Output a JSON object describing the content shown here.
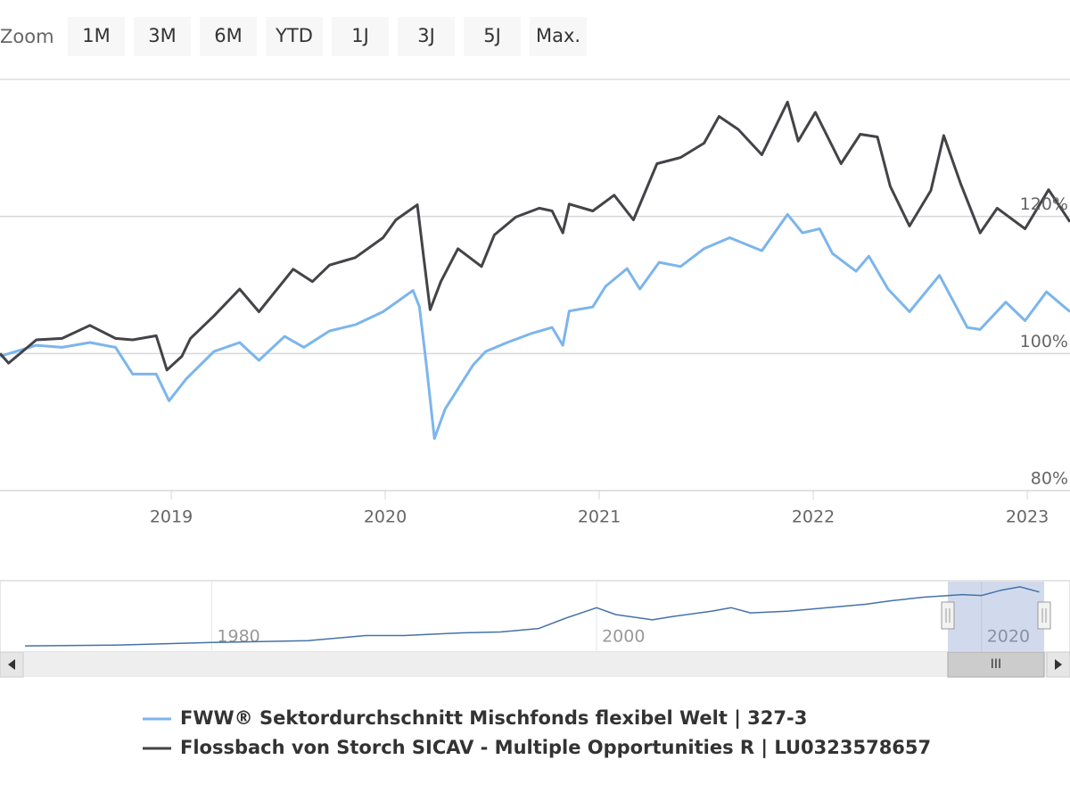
{
  "chart_data": {
    "type": "line",
    "zoom_label": "Zoom",
    "zoom_buttons": [
      "1M",
      "3M",
      "6M",
      "YTD",
      "1J",
      "3J",
      "5J",
      "Max."
    ],
    "xlim": [
      2018.2,
      2023.2
    ],
    "xticks": [
      2019,
      2020,
      2021,
      2022,
      2023
    ],
    "ylim": [
      80,
      140
    ],
    "yticks": [
      {
        "value": 80,
        "label": "80%"
      },
      {
        "value": 100,
        "label": "100%"
      },
      {
        "value": 120,
        "label": "120%"
      }
    ],
    "grid": true,
    "series": [
      {
        "name": "FWW® Sektordurchschnitt Mischfonds flexibel Welt | 327-3",
        "color": "#7cb5ec",
        "x": [
          2018.2,
          2018.37,
          2018.49,
          2018.62,
          2018.74,
          2018.82,
          2018.93,
          2018.99,
          2019.07,
          2019.2,
          2019.32,
          2019.41,
          2019.53,
          2019.62,
          2019.74,
          2019.86,
          2019.99,
          2020.13,
          2020.16,
          2020.19,
          2020.23,
          2020.28,
          2020.41,
          2020.47,
          2020.57,
          2020.68,
          2020.78,
          2020.83,
          2020.86,
          2020.97,
          2021.03,
          2021.13,
          2021.19,
          2021.28,
          2021.38,
          2021.49,
          2021.61,
          2021.76,
          2021.88,
          2021.95,
          2022.03,
          2022.09,
          2022.2,
          2022.26,
          2022.35,
          2022.45,
          2022.59,
          2022.72,
          2022.78,
          2022.9,
          2022.99,
          2023.09,
          2023.2
        ],
        "values": [
          99.6,
          101.2,
          100.9,
          101.6,
          100.9,
          97.0,
          97.0,
          93.1,
          96.3,
          100.3,
          101.6,
          99.0,
          102.5,
          100.9,
          103.3,
          104.2,
          106.1,
          109.2,
          106.8,
          99.0,
          87.6,
          91.9,
          98.3,
          100.3,
          101.6,
          102.9,
          103.8,
          101.2,
          106.2,
          106.8,
          109.8,
          112.4,
          109.4,
          113.3,
          112.7,
          115.3,
          116.9,
          115.0,
          120.3,
          117.6,
          118.2,
          114.6,
          112.0,
          114.2,
          109.4,
          106.1,
          111.4,
          103.8,
          103.5,
          107.5,
          104.8,
          109.0,
          106.1
        ]
      },
      {
        "name": "Flossbach von Storch SICAV - Multiple Opportunities R | LU0323578657",
        "color": "#434348",
        "x": [
          2018.2,
          2018.24,
          2018.37,
          2018.49,
          2018.62,
          2018.74,
          2018.82,
          2018.93,
          2018.98,
          2019.05,
          2019.09,
          2019.2,
          2019.32,
          2019.41,
          2019.57,
          2019.66,
          2019.74,
          2019.86,
          2019.99,
          2020.05,
          2020.15,
          2020.18,
          2020.21,
          2020.26,
          2020.34,
          2020.45,
          2020.51,
          2020.61,
          2020.72,
          2020.78,
          2020.83,
          2020.86,
          2020.97,
          2021.07,
          2021.16,
          2021.27,
          2021.38,
          2021.49,
          2021.56,
          2021.65,
          2021.76,
          2021.88,
          2021.93,
          2022.01,
          2022.13,
          2022.22,
          2022.3,
          2022.36,
          2022.45,
          2022.55,
          2022.61,
          2022.69,
          2022.78,
          2022.86,
          2022.99,
          2023.1,
          2023.2
        ],
        "values": [
          100.0,
          98.6,
          102.0,
          102.2,
          104.1,
          102.2,
          102.0,
          102.6,
          97.6,
          99.6,
          102.2,
          105.5,
          109.4,
          106.1,
          112.3,
          110.5,
          112.9,
          114.0,
          116.9,
          119.5,
          121.7,
          114.0,
          106.4,
          110.5,
          115.3,
          112.7,
          117.3,
          119.9,
          121.2,
          120.8,
          117.6,
          121.8,
          120.8,
          123.1,
          119.5,
          127.7,
          128.6,
          130.7,
          134.6,
          132.7,
          129.0,
          136.7,
          131.0,
          135.2,
          127.7,
          132.0,
          131.6,
          124.4,
          118.6,
          123.8,
          131.8,
          124.7,
          117.6,
          121.2,
          118.2,
          123.9,
          119.2
        ]
      }
    ],
    "navigator": {
      "xlim": [
        1969,
        2024.6
      ],
      "xticks": [
        1980,
        2000,
        2020
      ],
      "ylim": [
        0,
        80
      ],
      "color": "#4572a7",
      "x": [
        1970.3,
        1975,
        1980,
        1985,
        1988,
        1990,
        1993,
        1995,
        1997,
        1998.4,
        2000,
        2001,
        2002.9,
        2004,
        2006,
        2007,
        2008,
        2010,
        2012,
        2014,
        2015.3,
        2017,
        2019,
        2020,
        2021,
        2022,
        2023
      ],
      "values": [
        6,
        7,
        10,
        12,
        18,
        18,
        21,
        22,
        26,
        38,
        50,
        42,
        36,
        40,
        46,
        50,
        44,
        46,
        50,
        54,
        58,
        62,
        65,
        64,
        70,
        74,
        68
      ]
    }
  }
}
